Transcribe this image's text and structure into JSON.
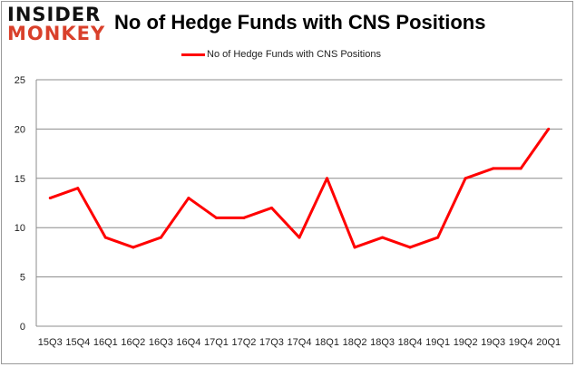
{
  "logo": {
    "line1": "INSIDER",
    "line2": "MONKEY"
  },
  "chart_data": {
    "type": "line",
    "title": "No of Hedge Funds with CNS Positions",
    "xlabel": "",
    "ylabel": "",
    "categories": [
      "15Q3",
      "15Q4",
      "16Q1",
      "16Q2",
      "16Q3",
      "16Q4",
      "17Q1",
      "17Q2",
      "17Q3",
      "17Q4",
      "18Q1",
      "18Q2",
      "18Q3",
      "18Q4",
      "19Q1",
      "19Q2",
      "19Q3",
      "19Q4",
      "20Q1"
    ],
    "series": [
      {
        "name": "No of Hedge Funds with CNS Positions",
        "values": [
          13,
          14,
          9,
          8,
          9,
          13,
          11,
          11,
          12,
          9,
          15,
          8,
          9,
          8,
          9,
          15,
          16,
          16,
          20
        ],
        "color": "#ff0000"
      }
    ],
    "ylim": [
      0,
      25
    ],
    "yticks": [
      0,
      5,
      10,
      15,
      20,
      25
    ],
    "grid": true,
    "legend": "top"
  }
}
